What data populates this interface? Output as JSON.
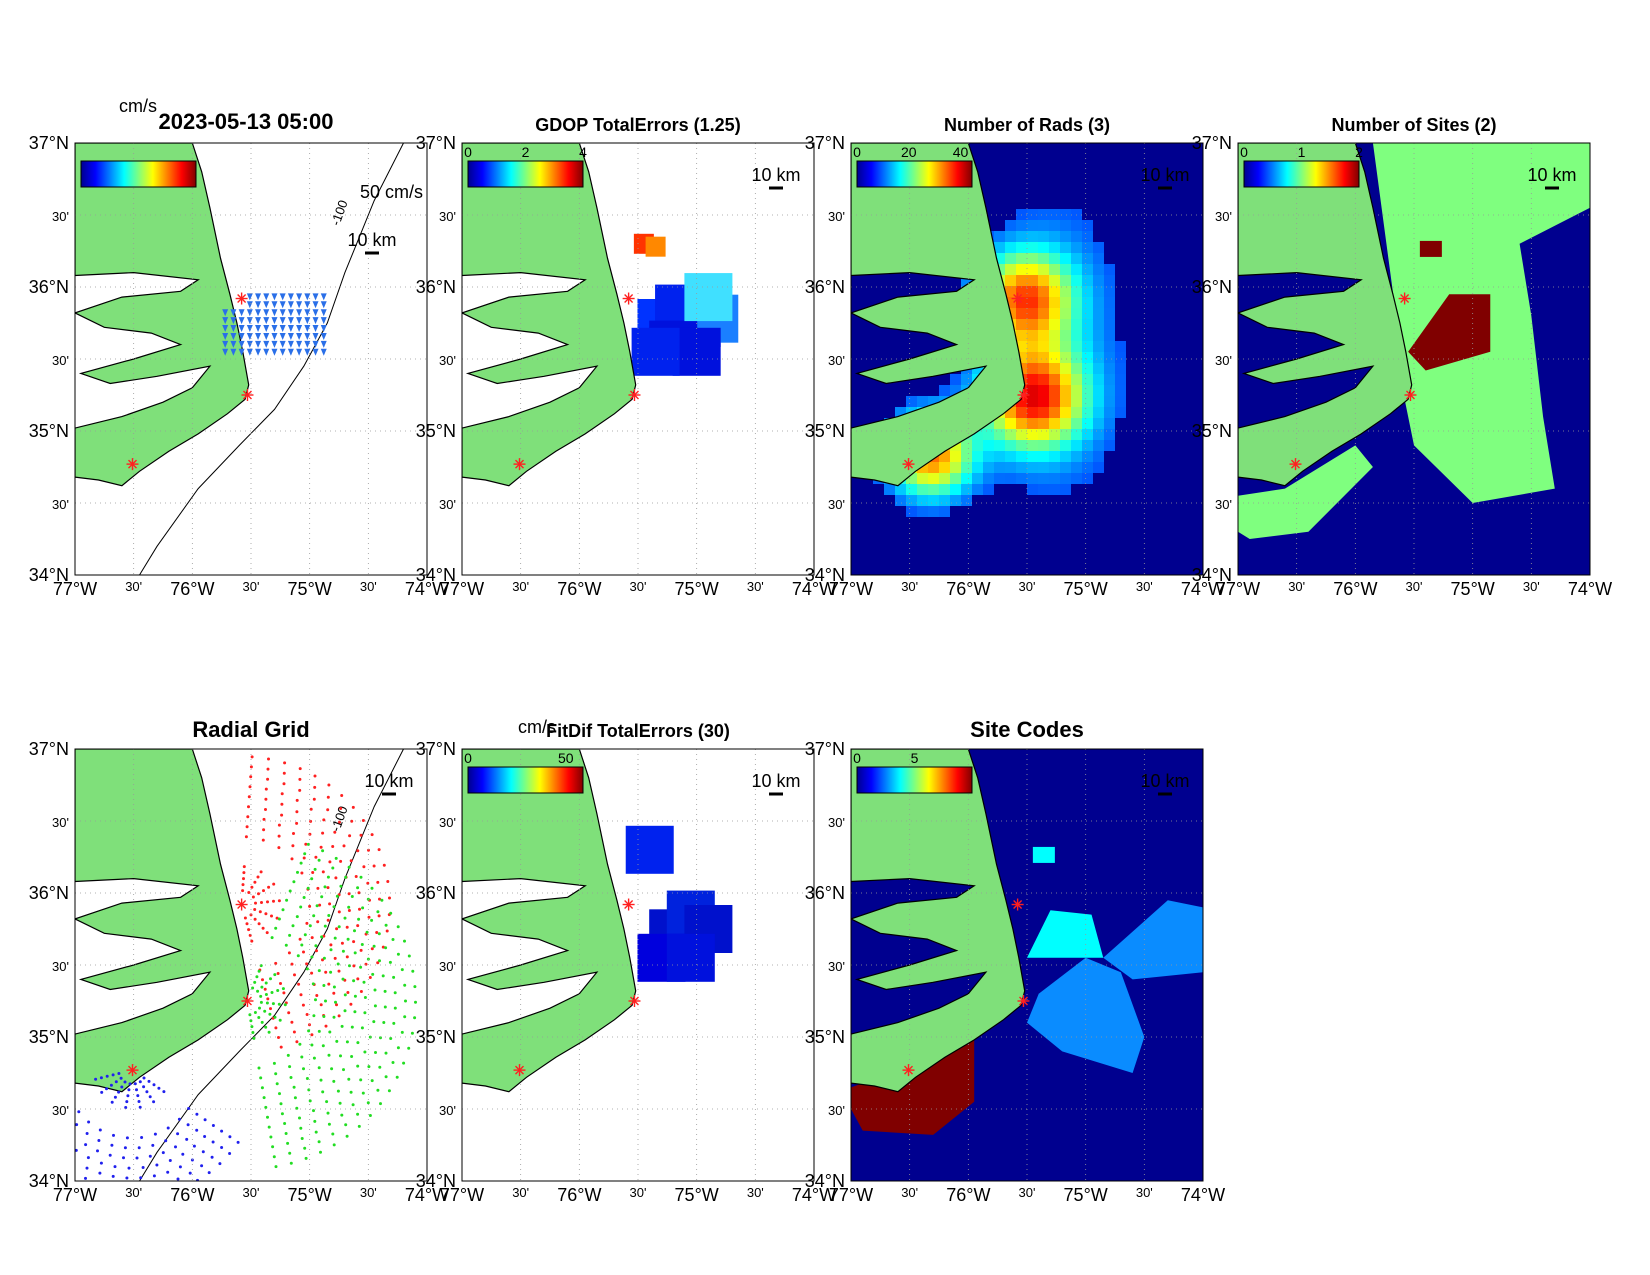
{
  "figure": {
    "timestamp": "2023-05-13 05:00",
    "units": "cm/s",
    "scale_label": "10 km",
    "vector_scale_label": "50 cm/s",
    "contour_label": "-100",
    "lat_ticks": [
      "37°N",
      "30'",
      "36°N",
      "30'",
      "35°N",
      "30'",
      "34°N"
    ],
    "lon_ticks": [
      "77°W",
      "30'",
      "76°W",
      "30'",
      "75°W",
      "30'",
      "74°W"
    ],
    "colors": {
      "land": "#7fe07a",
      "coast": "#000000",
      "site_marker": "#ff2020",
      "vector": "#2a6fe8",
      "grid_red": "#ff2020",
      "grid_green": "#22dd22",
      "grid_blue": "#2020ee"
    }
  },
  "panels": [
    {
      "id": "vectors",
      "title": "2023-05-13 05:00",
      "colorbar_ticks": [],
      "colorbar_units": "cm/s"
    },
    {
      "id": "gdop",
      "title": "GDOP TotalErrors (1.25)",
      "colorbar_ticks": [
        "0",
        "2",
        "4"
      ]
    },
    {
      "id": "nrads",
      "title": "Number of Rads (3)",
      "colorbar_ticks": [
        "0",
        "20",
        "40"
      ]
    },
    {
      "id": "nsites",
      "title": "Number of Sites (2)",
      "colorbar_ticks": [
        "0",
        "1",
        "2"
      ]
    },
    {
      "id": "radgrid",
      "title": "Radial Grid",
      "colorbar_ticks": []
    },
    {
      "id": "fitdif",
      "title": "FitDif TotalErrors (30)",
      "colorbar_ticks": [
        "0",
        "50"
      ],
      "colorbar_units": "cm/s"
    },
    {
      "id": "sitecodes",
      "title": "Site Codes",
      "colorbar_ticks": [
        "0",
        "5"
      ]
    }
  ],
  "sites": [
    {
      "lon": -75.58,
      "lat": 35.92
    },
    {
      "lon": -75.53,
      "lat": 35.25
    },
    {
      "lon": -76.51,
      "lat": 34.77
    }
  ]
}
